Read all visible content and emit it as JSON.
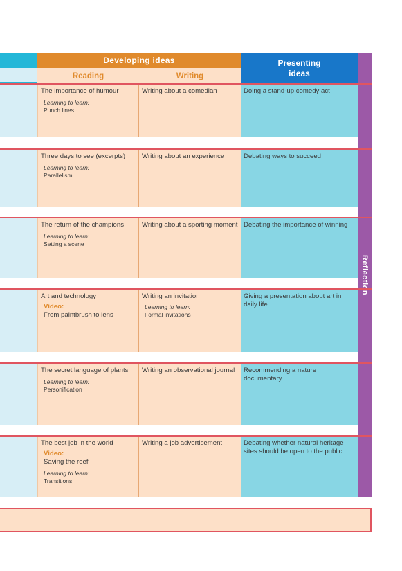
{
  "header": {
    "developing": "Developing ideas",
    "reading": "Reading",
    "writing": "Writing",
    "presenting": [
      "Presenting",
      "ideas"
    ],
    "reflection": "Reflection"
  },
  "rows": [
    {
      "reading": "The importance of humour",
      "reading_ltl_label": "Learning to learn:",
      "reading_ltl": "Punch lines",
      "writing": "Writing about a comedian",
      "presenting": "Doing a stand-up comedy act"
    },
    {
      "reading": "Three days to see (excerpts)",
      "reading_ltl_label": "Learning to learn:",
      "reading_ltl": "Parallelism",
      "writing": "Writing about an experience",
      "presenting": "Debating ways to succeed"
    },
    {
      "reading": "The return of the champions",
      "reading_ltl_label": "Learning to learn:",
      "reading_ltl": "Setting a scene",
      "writing": "Writing about a sporting moment",
      "presenting": "Debating the importance of winning"
    },
    {
      "reading": "Art and technology",
      "video_label": "Video:",
      "video": "From paintbrush to lens",
      "writing": "Writing an invitation",
      "writing_ltl_label": "Learning to learn:",
      "writing_ltl": "Formal invitations",
      "presenting": "Giving a presentation about art in daily life"
    },
    {
      "reading": "The secret language of plants",
      "reading_ltl_label": "Learning to learn:",
      "reading_ltl": "Personification",
      "writing": "Writing an observational journal",
      "presenting": "Recommending a nature documentary"
    },
    {
      "reading": "The best job in the world",
      "video_label": "Video:",
      "video": "Saving the reef",
      "reading_ltl_label": "Learning to learn:",
      "reading_ltl": "Transitions",
      "writing": "Writing a job advertisement",
      "presenting": "Debating whether natural heritage sites should be open to the public"
    }
  ]
}
